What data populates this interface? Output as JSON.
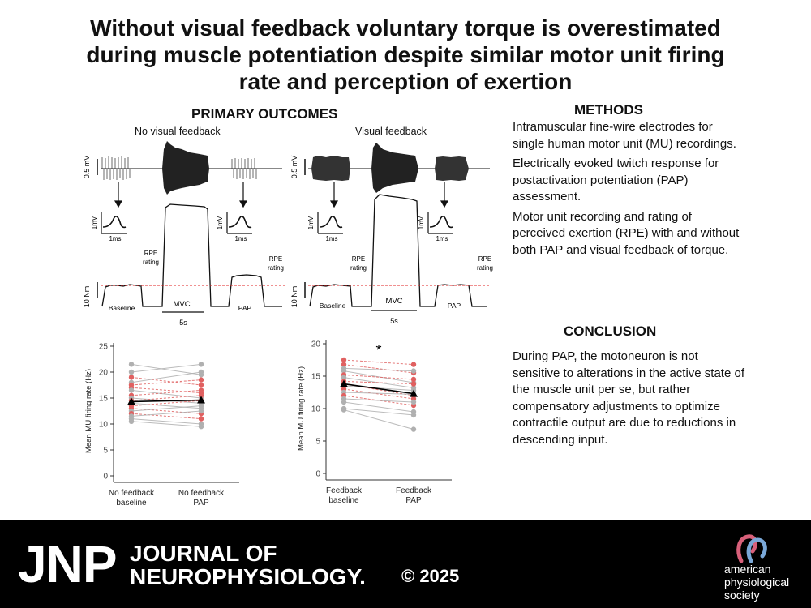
{
  "title": {
    "line1": "Without visual feedback voluntary torque is overestimated",
    "line2": "during muscle potentiation despite similar motor unit firing",
    "line3": "rate and perception of exertion"
  },
  "primary_outcomes": {
    "heading": "PRIMARY OUTCOMES",
    "left_panel": {
      "label": "No visual feedback",
      "emg_scale": "0.5 mV",
      "inset_scale_y": "1mV",
      "inset_scale_x": "1ms",
      "rpe_label": "RPE rating",
      "torque_scale": "10 Nm",
      "phase_labels": [
        "Baseline",
        "MVC",
        "PAP"
      ],
      "time_scale": "5s"
    },
    "right_panel": {
      "label": "Visual feedback",
      "emg_scale": "0.5 mV",
      "inset_scale_y": "1mV",
      "inset_scale_x": "1ms",
      "rpe_label": "RPE rating",
      "torque_scale": "10 Nm",
      "phase_labels": [
        "Baseline",
        "MVC",
        "PAP"
      ],
      "time_scale": "5s"
    }
  },
  "chart_data": [
    {
      "type": "scatter",
      "ylabel": "Mean MU firing rate (Hz)",
      "ylim": [
        0,
        25
      ],
      "yticks": [
        0,
        5,
        10,
        15,
        20,
        25
      ],
      "categories": [
        "No feedback baseline",
        "No feedback PAP"
      ],
      "grid": false,
      "mean": [
        14.3,
        14.6
      ],
      "pairs": [
        [
          21.5,
          19.5
        ],
        [
          20.0,
          21.5
        ],
        [
          19.0,
          17.5
        ],
        [
          18.0,
          20.0
        ],
        [
          17.5,
          18.5
        ],
        [
          17.0,
          16.0
        ],
        [
          16.5,
          15.0
        ],
        [
          15.5,
          16.5
        ],
        [
          15.0,
          14.0
        ],
        [
          14.5,
          15.5
        ],
        [
          14.0,
          13.0
        ],
        [
          13.5,
          14.5
        ],
        [
          13.0,
          12.0
        ],
        [
          12.5,
          13.5
        ],
        [
          12.0,
          11.0
        ],
        [
          11.5,
          12.5
        ],
        [
          11.0,
          10.0
        ],
        [
          10.5,
          9.5
        ]
      ],
      "highlight": [
        false,
        false,
        true,
        false,
        true,
        true,
        false,
        true,
        false,
        true,
        false,
        true,
        true,
        false,
        true,
        false,
        false,
        false
      ]
    },
    {
      "type": "scatter",
      "ylabel": "Mean MU firing rate (Hz)",
      "ylim": [
        0,
        20
      ],
      "yticks": [
        0,
        5,
        10,
        15,
        20
      ],
      "categories": [
        "Feedback baseline",
        "Feedback PAP"
      ],
      "grid": false,
      "significance": "*",
      "mean": [
        13.8,
        12.3
      ],
      "pairs": [
        [
          17.5,
          16.8
        ],
        [
          16.8,
          15.5
        ],
        [
          16.2,
          15.8
        ],
        [
          15.8,
          14.0
        ],
        [
          15.2,
          14.5
        ],
        [
          14.8,
          13.2
        ],
        [
          14.2,
          13.8
        ],
        [
          13.8,
          12.0
        ],
        [
          13.5,
          12.8
        ],
        [
          13.0,
          11.5
        ],
        [
          12.5,
          12.2
        ],
        [
          12.0,
          10.5
        ],
        [
          11.5,
          11.0
        ],
        [
          11.0,
          9.5
        ],
        [
          10.0,
          9.0
        ],
        [
          9.8,
          6.8
        ]
      ],
      "highlight": [
        true,
        true,
        false,
        false,
        true,
        false,
        true,
        true,
        false,
        true,
        false,
        true,
        false,
        false,
        false,
        false
      ]
    }
  ],
  "methods": {
    "heading": "METHODS",
    "items": [
      "Intramuscular fine-wire electrodes for single human motor unit (MU) recordings.",
      "Electrically evoked twitch response for postactivation potentiation (PAP) assessment.",
      "Motor unit recording and rating of perceived exertion (RPE) with and without both PAP and visual feedback of torque."
    ]
  },
  "conclusion": {
    "heading": "CONCLUSION",
    "text": "During PAP, the motoneuron is not sensitive to alterations in the active state of the muscle unit per se, but rather compensatory adjustments to optimize contractile output are due to reductions in descending input."
  },
  "footer": {
    "jnp": "JNP",
    "journal_line1": "JOURNAL OF",
    "journal_line2": "NEUROPHYSIOLOGY.",
    "copyright": "© 2025",
    "publisher_line1": "american",
    "publisher_line2": "physiological",
    "publisher_line3": "society"
  },
  "colors": {
    "footer_bg": "#000000",
    "highlight_red": "#e06060",
    "grey_points": "#b0b0b0",
    "threshold_red": "#e02020"
  }
}
